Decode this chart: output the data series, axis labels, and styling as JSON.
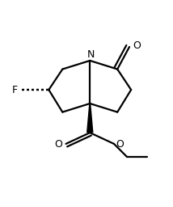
{
  "bg_color": "#ffffff",
  "line_color": "#000000",
  "line_width": 1.6,
  "figsize": [
    2.14,
    2.56
  ],
  "dpi": 100,
  "xlim": [
    0,
    10
  ],
  "ylim": [
    0,
    12
  ]
}
